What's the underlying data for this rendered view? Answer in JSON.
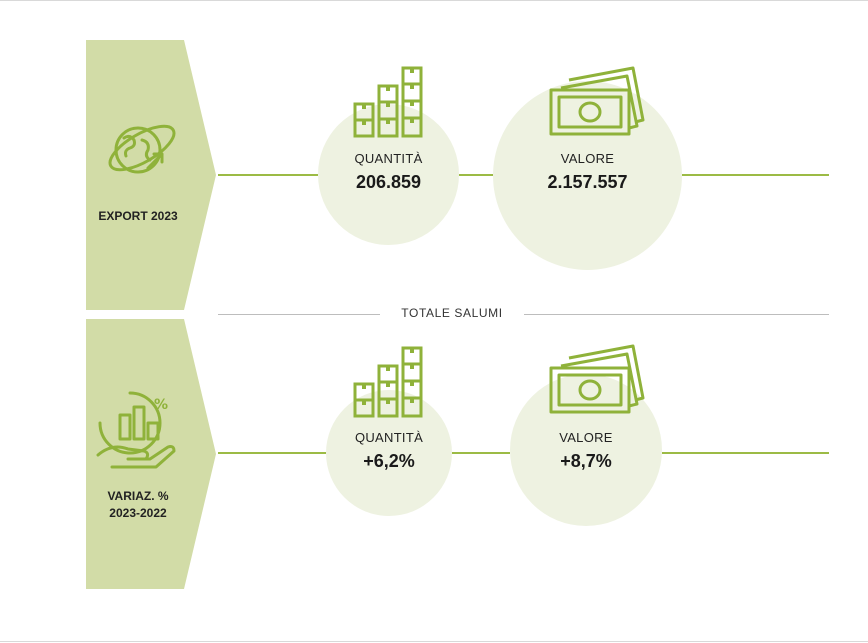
{
  "colors": {
    "band": "#d2dca7",
    "accent": "#8fb23a",
    "circle": "#eef2e1",
    "line": "#9cbb45"
  },
  "export_section": {
    "label": "EXPORT 2023",
    "icon": "globe-icon",
    "quantity": {
      "label": "QUANTITÀ",
      "value": "206.859",
      "icon": "boxes-icon"
    },
    "value": {
      "label": "VALORE",
      "value": "2.157.557",
      "icon": "banknotes-icon"
    }
  },
  "divider": {
    "label": "TOTALE SALUMI"
  },
  "variation_section": {
    "label": "VARIAZ. %\n2023-2022",
    "icon": "growth-hand-icon",
    "quantity": {
      "label": "QUANTITÀ",
      "value": "+6,2%",
      "icon": "boxes-icon"
    },
    "value": {
      "label": "VALORE",
      "value": "+8,7%",
      "icon": "banknotes-icon"
    }
  }
}
